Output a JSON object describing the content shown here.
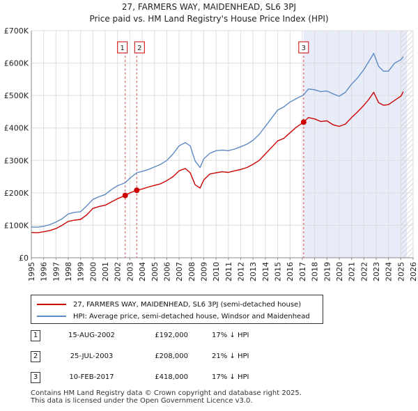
{
  "chart_data": {
    "type": "line",
    "title": "27, FARMERS WAY, MAIDENHEAD, SL6 3PJ",
    "subtitle": "Price paid vs. HM Land Registry's House Price Index (HPI)",
    "xlabel": "",
    "ylabel": "",
    "xlim": [
      1995,
      2026
    ],
    "ylim": [
      0,
      700000
    ],
    "x_ticks": [
      1995,
      1996,
      1997,
      1998,
      1999,
      2000,
      2001,
      2002,
      2003,
      2004,
      2005,
      2006,
      2007,
      2008,
      2009,
      2010,
      2011,
      2012,
      2013,
      2014,
      2015,
      2016,
      2017,
      2018,
      2019,
      2020,
      2021,
      2022,
      2023,
      2024,
      2025,
      2026
    ],
    "y_ticks": [
      0,
      100000,
      200000,
      300000,
      400000,
      500000,
      600000,
      700000
    ],
    "y_tick_labels": [
      "£0",
      "£100K",
      "£200K",
      "£300K",
      "£400K",
      "£500K",
      "£600K",
      "£700K"
    ],
    "grid": true,
    "shaded_region": {
      "from": 2017.11,
      "to": 2025.5,
      "color": "#e8ecf8"
    },
    "hatched_region": {
      "from": 2025.0,
      "to": 2026.0
    },
    "series": [
      {
        "name": "27, FARMERS WAY, MAIDENHEAD, SL6 3PJ (semi-detached house)",
        "color": "#cc0000",
        "x": [
          1995.0,
          1995.5,
          1996.0,
          1996.5,
          1997.0,
          1997.5,
          1998.0,
          1998.5,
          1999.0,
          1999.5,
          2000.0,
          2000.5,
          2001.0,
          2001.5,
          2002.0,
          2002.62,
          2003.0,
          2003.56,
          2004.0,
          2004.5,
          2005.0,
          2005.5,
          2006.0,
          2006.5,
          2007.0,
          2007.5,
          2007.9,
          2008.3,
          2008.7,
          2009.0,
          2009.5,
          2010.0,
          2010.5,
          2011.0,
          2011.5,
          2012.0,
          2012.5,
          2013.0,
          2013.5,
          2014.0,
          2014.5,
          2015.0,
          2015.5,
          2016.0,
          2016.5,
          2017.11,
          2017.5,
          2018.0,
          2018.5,
          2019.0,
          2019.5,
          2020.0,
          2020.5,
          2021.0,
          2021.5,
          2022.0,
          2022.4,
          2022.8,
          2023.2,
          2023.6,
          2024.0,
          2024.5,
          2025.0,
          2025.2
        ],
        "values": [
          78000,
          77000,
          80000,
          84000,
          90000,
          100000,
          112000,
          116000,
          118000,
          132000,
          152000,
          158000,
          162000,
          172000,
          182000,
          192000,
          200000,
          208000,
          212000,
          218000,
          223000,
          228000,
          238000,
          250000,
          268000,
          275000,
          262000,
          225000,
          215000,
          240000,
          258000,
          262000,
          265000,
          263000,
          268000,
          272000,
          278000,
          288000,
          300000,
          320000,
          340000,
          360000,
          368000,
          385000,
          402000,
          418000,
          432000,
          428000,
          420000,
          422000,
          410000,
          405000,
          412000,
          432000,
          450000,
          470000,
          488000,
          510000,
          478000,
          470000,
          472000,
          485000,
          498000,
          512000
        ]
      },
      {
        "name": "HPI: Average price, semi-detached house, Windsor and Maidenhead",
        "color": "#5b8ac4",
        "x": [
          1995.0,
          1995.5,
          1996.0,
          1996.5,
          1997.0,
          1997.5,
          1998.0,
          1998.5,
          1999.0,
          1999.5,
          2000.0,
          2000.5,
          2001.0,
          2001.5,
          2002.0,
          2002.62,
          2003.0,
          2003.56,
          2004.0,
          2004.5,
          2005.0,
          2005.5,
          2006.0,
          2006.5,
          2007.0,
          2007.5,
          2007.9,
          2008.3,
          2008.7,
          2009.0,
          2009.5,
          2010.0,
          2010.5,
          2011.0,
          2011.5,
          2012.0,
          2012.5,
          2013.0,
          2013.5,
          2014.0,
          2014.5,
          2015.0,
          2015.5,
          2016.0,
          2016.5,
          2017.11,
          2017.5,
          2018.0,
          2018.5,
          2019.0,
          2019.5,
          2020.0,
          2020.5,
          2021.0,
          2021.5,
          2022.0,
          2022.4,
          2022.8,
          2023.2,
          2023.6,
          2024.0,
          2024.5,
          2025.0,
          2025.2
        ],
        "values": [
          95000,
          94000,
          97000,
          102000,
          110000,
          120000,
          135000,
          140000,
          142000,
          160000,
          180000,
          188000,
          195000,
          210000,
          222000,
          231000,
          245000,
          262000,
          266000,
          272000,
          280000,
          288000,
          300000,
          320000,
          345000,
          355000,
          345000,
          298000,
          278000,
          305000,
          322000,
          330000,
          332000,
          330000,
          335000,
          342000,
          350000,
          362000,
          380000,
          405000,
          430000,
          455000,
          465000,
          480000,
          490000,
          502000,
          520000,
          518000,
          512000,
          514000,
          505000,
          498000,
          510000,
          535000,
          555000,
          580000,
          605000,
          630000,
          590000,
          575000,
          575000,
          600000,
          610000,
          620000
        ]
      }
    ],
    "markers": [
      {
        "label": "1",
        "x": 2002.62,
        "value": 192000
      },
      {
        "label": "2",
        "x": 2003.56,
        "value": 208000
      },
      {
        "label": "3",
        "x": 2017.11,
        "value": 418000
      }
    ]
  },
  "legend": {
    "items": [
      {
        "label": "27, FARMERS WAY, MAIDENHEAD, SL6 3PJ (semi-detached house)",
        "color": "#cc0000"
      },
      {
        "label": "HPI: Average price, semi-detached house, Windsor and Maidenhead",
        "color": "#5b8ac4"
      }
    ]
  },
  "sales": [
    {
      "num": "1",
      "date": "15-AUG-2002",
      "price": "£192,000",
      "hpi": "17% ↓ HPI"
    },
    {
      "num": "2",
      "date": "25-JUL-2003",
      "price": "£208,000",
      "hpi": "21% ↓ HPI"
    },
    {
      "num": "3",
      "date": "10-FEB-2017",
      "price": "£418,000",
      "hpi": "17% ↓ HPI"
    }
  ],
  "footer": {
    "line1": "Contains HM Land Registry data © Crown copyright and database right 2025.",
    "line2": "This data is licensed under the Open Government Licence v3.0."
  }
}
